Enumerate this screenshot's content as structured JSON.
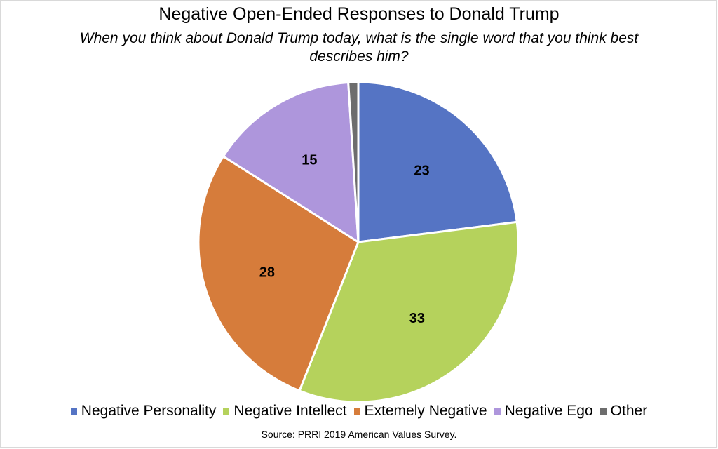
{
  "chart_data": {
    "type": "pie",
    "title": "Negative Open-Ended Responses to Donald Trump",
    "subtitle": "When you think about Donald Trump today, what is the single word that you think best describes him?",
    "source": "Source: PRRI 2019 American Values Survey.",
    "legend_position": "bottom",
    "slices": [
      {
        "label": "Negative Personality",
        "value": 23,
        "data_label": "23",
        "color": "#5574c4"
      },
      {
        "label": "Negative Intellect",
        "value": 33,
        "data_label": "33",
        "color": "#b5d25c"
      },
      {
        "label": "Extemely Negative",
        "value": 28,
        "data_label": "28",
        "color": "#d67c3b"
      },
      {
        "label": "Negative Ego",
        "value": 15,
        "data_label": "15",
        "color": "#ae96dc"
      },
      {
        "label": "Other",
        "value": 1,
        "data_label": "",
        "color": "#6d6d6d"
      }
    ]
  }
}
